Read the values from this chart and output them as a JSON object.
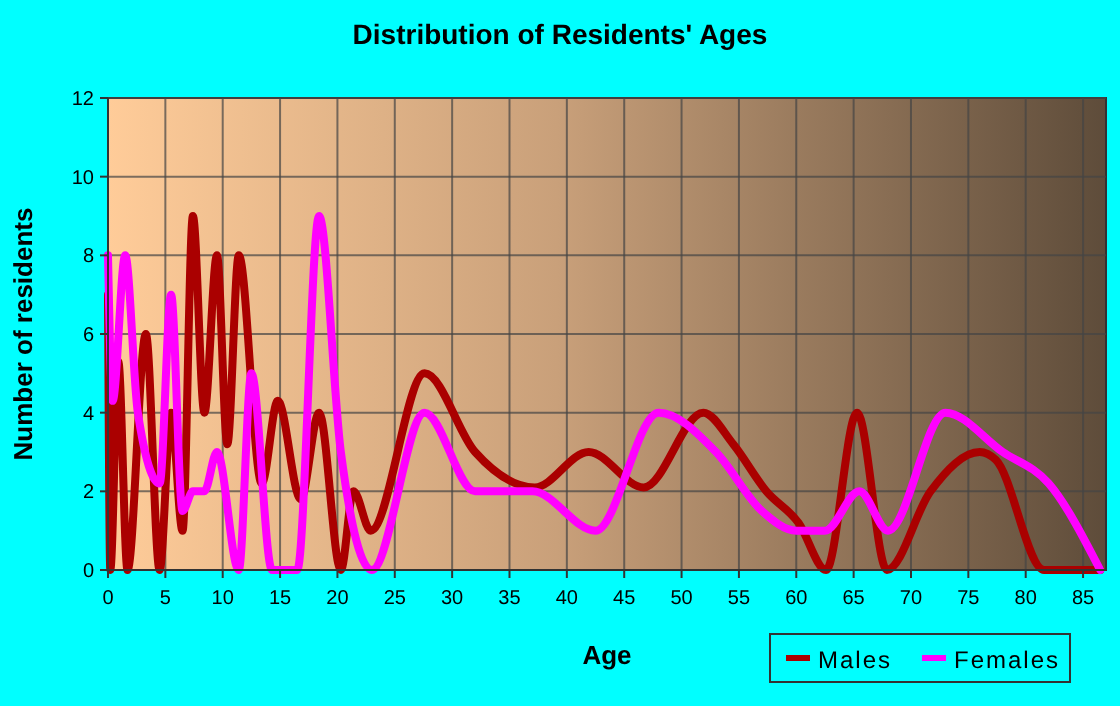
{
  "chart_data": {
    "type": "line",
    "title": "Distribution of Residents' Ages",
    "xlabel": "Age",
    "ylabel": "Number of residents",
    "xlim": [
      0,
      87
    ],
    "xticks": [
      0,
      5,
      10,
      15,
      20,
      25,
      30,
      35,
      40,
      45,
      50,
      55,
      60,
      65,
      70,
      75,
      80,
      85
    ],
    "ylim": [
      0,
      12
    ],
    "yticks": [
      0,
      2,
      4,
      6,
      8,
      10,
      12
    ],
    "grid": true,
    "legend": "bottom right",
    "marker": "none",
    "line_style": "solid",
    "series": [
      {
        "name": "Males",
        "color": "#aa0000",
        "x": [
          0,
          0.2,
          0.9,
          1.7,
          3.3,
          4.5,
          5.5,
          6.5,
          7.4,
          8.4,
          9.5,
          10.4,
          11.4,
          13.4,
          14.8,
          16.8,
          18.4,
          20.3,
          21.4,
          22.9,
          27.6,
          32,
          37.2,
          41.9,
          46.7,
          51.9,
          54.5,
          57.4,
          60.2,
          62.6,
          65.3,
          67.9,
          71.7,
          76,
          77.4,
          81.6,
          86.5
        ],
        "values": [
          7,
          0,
          5.3,
          0,
          6,
          0,
          4,
          1,
          9,
          4,
          8,
          3.2,
          8,
          2.2,
          4.3,
          1.8,
          4,
          0,
          2,
          1,
          5,
          3,
          2.1,
          3,
          2.1,
          4,
          3.2,
          2,
          1.2,
          0,
          4,
          0,
          2,
          3,
          2.8,
          0,
          0
        ]
      },
      {
        "name": "Females",
        "color": "#ff00ff",
        "x": [
          0,
          0.4,
          1.5,
          2.6,
          4.5,
          5.5,
          6.5,
          7.4,
          8.4,
          9.5,
          11.4,
          12.5,
          14.3,
          16.5,
          18.4,
          20.3,
          23,
          27.6,
          32,
          37,
          42.5,
          48,
          53,
          57,
          60,
          62.5,
          65.5,
          68,
          73,
          78,
          82,
          86.5
        ],
        "values": [
          8,
          4.3,
          8,
          4,
          2.2,
          7,
          1.5,
          2,
          2,
          3,
          0,
          5,
          0,
          0,
          9,
          3,
          0,
          4,
          2,
          2,
          1,
          4,
          3,
          1.5,
          1,
          1,
          2,
          1,
          4,
          3,
          2.2,
          0
        ]
      }
    ]
  }
}
